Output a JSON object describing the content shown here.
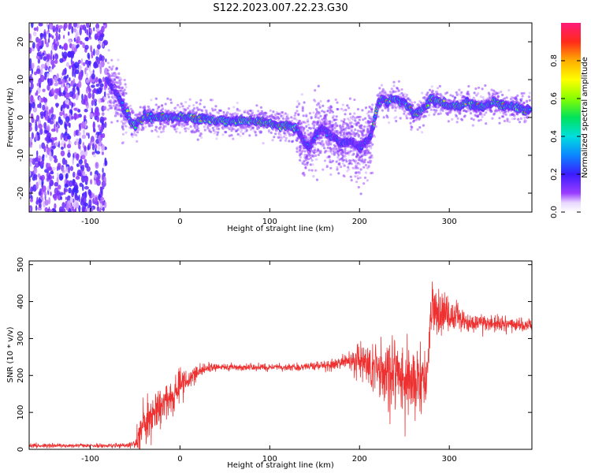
{
  "title": "S122.2023.007.22.23.G30",
  "chart_data": [
    {
      "type": "heatmap",
      "xlabel": "Height of straight line (km)",
      "ylabel": "Frequency (Hz)",
      "xlim": [
        -168,
        392
      ],
      "ylim": [
        -25,
        25
      ],
      "xticks": [
        -100,
        0,
        100,
        200,
        300
      ],
      "yticks": [
        -20,
        -10,
        0,
        10,
        20
      ],
      "colorbar": {
        "label": "Normalized spectral amplitude",
        "range": [
          0,
          1
        ],
        "ticks": [
          "0.0",
          "0.2",
          "0.4",
          "0.6",
          "0.8"
        ],
        "tick_values": [
          0.0,
          0.2,
          0.4,
          0.6,
          0.8
        ],
        "colormap": "rainbow"
      },
      "ridge": {
        "x": [
          -80,
          -75,
          -70,
          -65,
          -60,
          -55,
          -50,
          -45,
          -40,
          -30,
          -20,
          -10,
          0,
          10,
          20,
          30,
          40,
          50,
          60,
          70,
          80,
          90,
          100,
          110,
          120,
          130,
          135,
          140,
          145,
          150,
          160,
          170,
          180,
          190,
          200,
          210,
          215,
          220,
          225,
          230,
          240,
          250,
          260,
          270,
          280,
          290,
          300,
          310,
          320,
          330,
          340,
          350,
          360,
          370,
          380,
          390
        ],
        "y": [
          10,
          8,
          6,
          4,
          1,
          -1,
          -2,
          -1,
          0,
          0,
          0,
          0,
          0,
          0,
          -0.5,
          -0.5,
          -0.7,
          -1,
          -1,
          -1,
          -1,
          -1,
          -1.5,
          -2,
          -2,
          -3,
          -5,
          -7,
          -8,
          -5,
          -3,
          -5,
          -7,
          -6,
          -8,
          -6,
          -3,
          3,
          5,
          4,
          5,
          4,
          1,
          2,
          5,
          4,
          3,
          3,
          4,
          3,
          3,
          4,
          3,
          3,
          2,
          2
        ]
      },
      "noise_region_x": [
        -168,
        -82
      ]
    },
    {
      "type": "line",
      "xlabel": "Height of straight line (km)",
      "ylabel": "SNR (10 * v/v)",
      "xlim": [
        -168,
        392
      ],
      "ylim": [
        0,
        510
      ],
      "xticks": [
        -100,
        0,
        100,
        200,
        300
      ],
      "yticks": [
        0,
        100,
        200,
        300,
        400,
        500
      ],
      "series": [
        {
          "color": "#ee3030",
          "profile": {
            "x": [
              -168,
              -120,
              -80,
              -60,
              -50,
              -45,
              -40,
              -30,
              -20,
              -10,
              0,
              10,
              20,
              30,
              40,
              60,
              80,
              100,
              120,
              150,
              170,
              190,
              200,
              210,
              220,
              230,
              240,
              250,
              260,
              270,
              275,
              280,
              290,
              300,
              310,
              320,
              340,
              360,
              380,
              392
            ],
            "mean": [
              10,
              10,
              10,
              10,
              15,
              50,
              80,
              100,
              130,
              150,
              170,
              190,
              210,
              220,
              222,
              222,
              222,
              222,
              223,
              225,
              230,
              240,
              240,
              230,
              215,
              200,
              200,
              190,
              180,
              200,
              200,
              390,
              380,
              360,
              350,
              345,
              340,
              340,
              335,
              335
            ],
            "spread": [
              5,
              5,
              5,
              5,
              10,
              40,
              50,
              50,
              50,
              45,
              35,
              25,
              15,
              10,
              8,
              8,
              8,
              8,
              8,
              10,
              15,
              25,
              40,
              60,
              75,
              90,
              90,
              80,
              70,
              60,
              60,
              70,
              60,
              45,
              35,
              25,
              20,
              15,
              15,
              15
            ]
          }
        }
      ]
    }
  ]
}
